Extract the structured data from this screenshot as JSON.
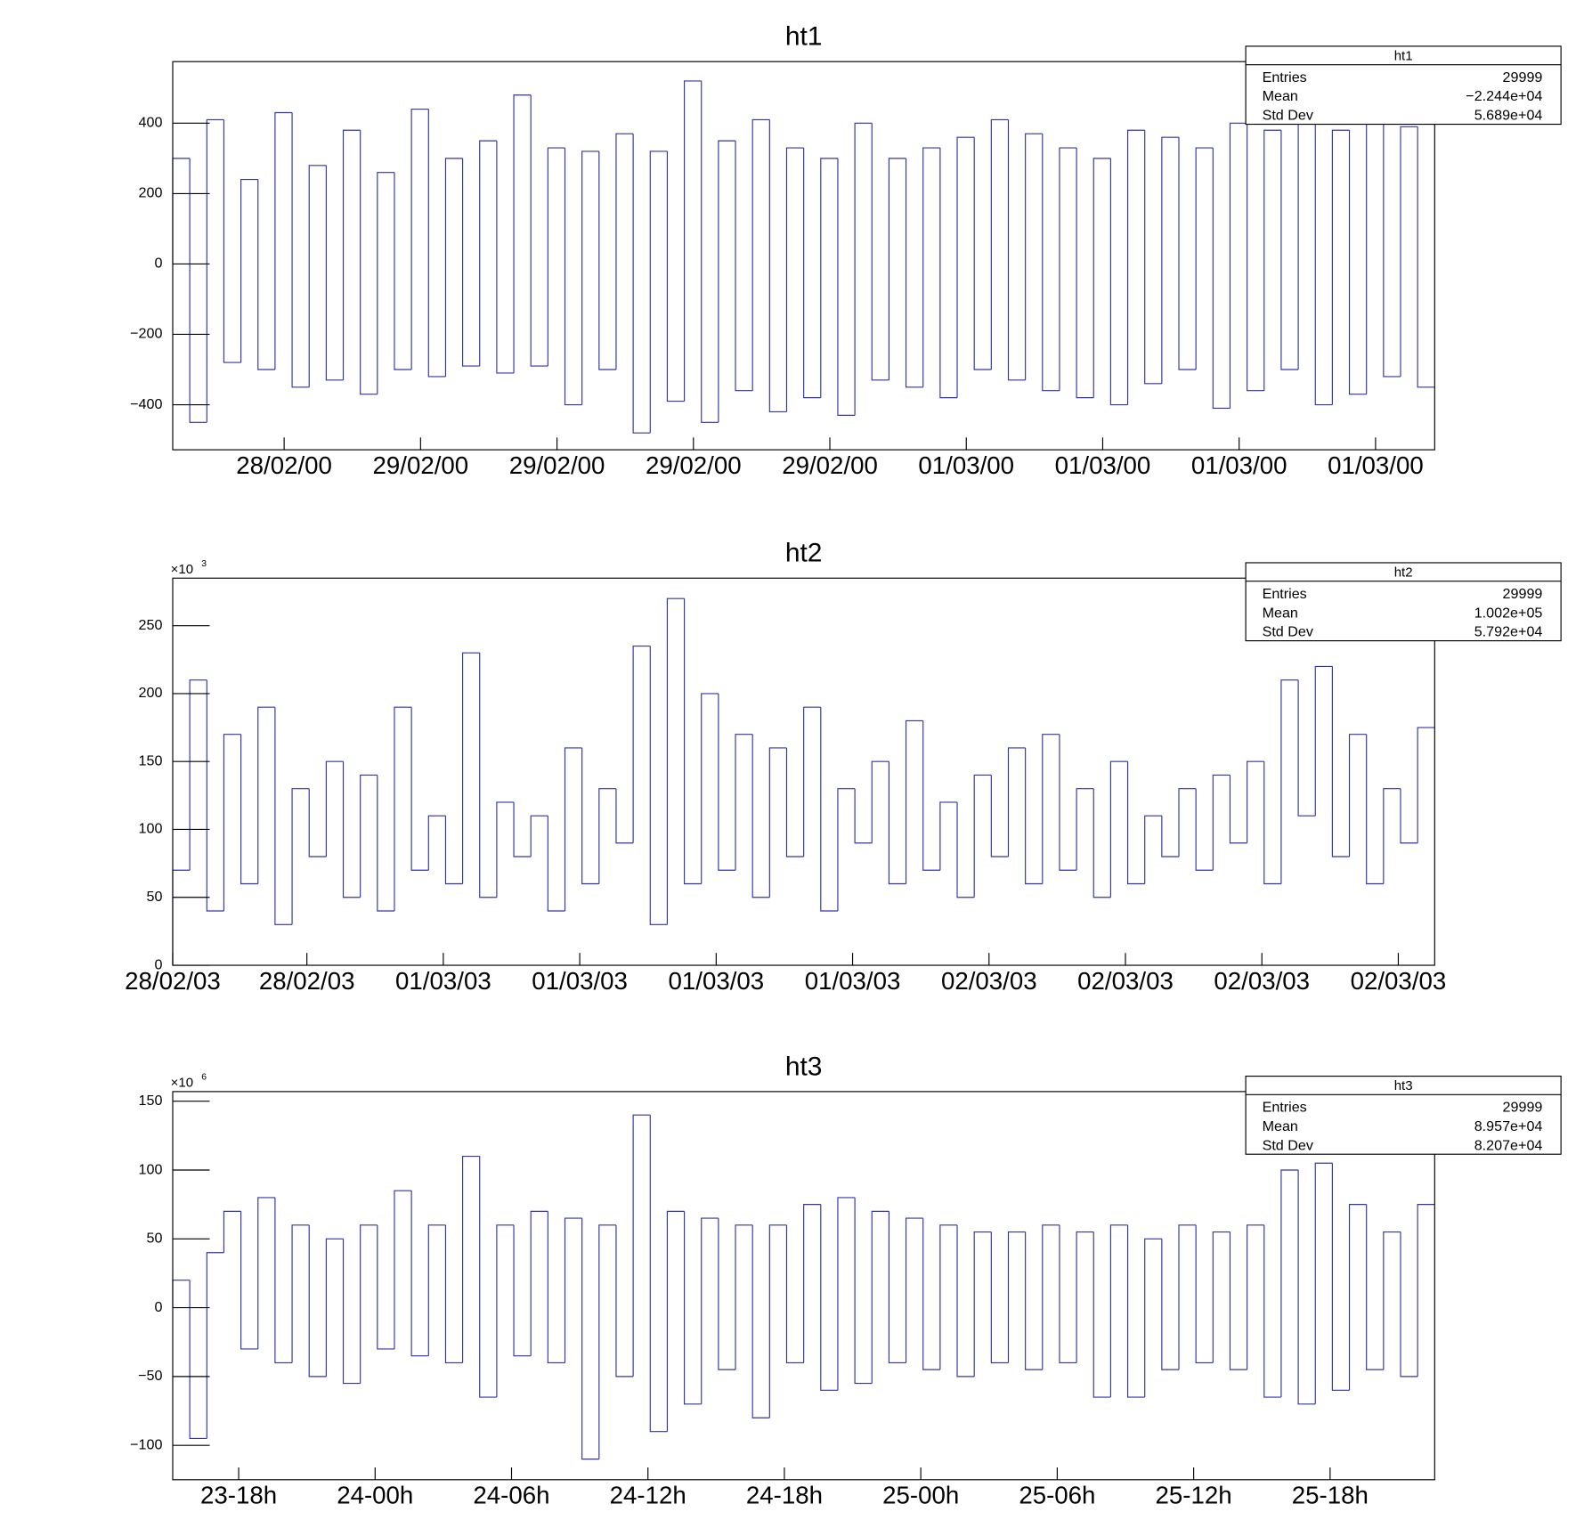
{
  "chart_data": [
    {
      "type": "histogram",
      "title": "ht1",
      "color": "#3333aa",
      "xlim": [
        0,
        55.5
      ],
      "ylim": [
        -528,
        575
      ],
      "xticks": [
        {
          "value": 4.9,
          "label": "28/02/00"
        },
        {
          "value": 10.9,
          "label": "29/02/00"
        },
        {
          "value": 16.9,
          "label": "29/02/00"
        },
        {
          "value": 22.9,
          "label": "29/02/00"
        },
        {
          "value": 28.9,
          "label": "29/02/00"
        },
        {
          "value": 34.9,
          "label": "01/03/00"
        },
        {
          "value": 40.9,
          "label": "01/03/00"
        },
        {
          "value": 46.9,
          "label": "01/03/00"
        },
        {
          "value": 52.9,
          "label": "01/03/00"
        }
      ],
      "yticks": [
        {
          "value": -400,
          "label": "−400"
        },
        {
          "value": -200,
          "label": "−200"
        },
        0,
        200,
        400
      ],
      "bins": [
        0,
        0.75,
        1.5,
        2.25,
        3,
        3.75,
        4.5,
        5.25,
        6,
        6.75,
        7.5,
        8.25,
        9,
        9.75,
        10.5,
        11.25,
        12,
        12.75,
        13.5,
        14.25,
        15,
        15.75,
        16.5,
        17.25,
        18,
        18.75,
        19.5,
        20.25,
        21,
        21.75,
        22.5,
        23.25,
        24,
        24.75,
        25.5,
        26.25,
        27,
        27.75,
        28.5,
        29.25,
        30,
        30.75,
        31.5,
        32.25,
        33,
        33.75,
        34.5,
        35.25,
        36,
        36.75,
        37.5,
        38.25,
        39,
        39.75,
        40.5,
        41.25,
        42,
        42.75,
        43.5,
        44.25,
        45,
        45.75,
        46.5,
        47.25,
        48,
        48.75,
        49.5,
        50.25,
        51,
        51.75,
        52.5,
        53.25,
        54,
        54.75,
        55.5
      ],
      "values": [
        300,
        -450,
        410,
        -280,
        240,
        -300,
        430,
        -350,
        280,
        -330,
        380,
        -370,
        260,
        -300,
        440,
        -320,
        300,
        -290,
        350,
        -310,
        480,
        -290,
        330,
        -400,
        320,
        -300,
        370,
        -480,
        320,
        -390,
        520,
        -450,
        350,
        -360,
        410,
        -420,
        330,
        -380,
        300,
        -430,
        400,
        -330,
        300,
        -350,
        330,
        -380,
        360,
        -300,
        410,
        -330,
        370,
        -360,
        330,
        -380,
        300,
        -400,
        380,
        -340,
        360,
        -300,
        330,
        -410,
        400,
        -360,
        380,
        -300,
        460,
        -400,
        380,
        -370,
        420,
        -320,
        390,
        -350
      ],
      "stats": {
        "title": "ht1",
        "rows": [
          [
            "Entries",
            "29999"
          ],
          [
            "Mean",
            "−2.244e+04"
          ],
          [
            "Std Dev",
            "5.689e+04"
          ]
        ]
      }
    },
    {
      "type": "histogram",
      "title": "ht2",
      "color": "#3333aa",
      "xlim": [
        0,
        55.5
      ],
      "ylim": [
        0,
        285
      ],
      "y_multiplier": {
        "base": "×10",
        "exponent": "3"
      },
      "xticks": [
        {
          "value": 0,
          "label": "28/02/03"
        },
        {
          "value": 5.9,
          "label": "28/02/03"
        },
        {
          "value": 11.9,
          "label": "01/03/03"
        },
        {
          "value": 17.9,
          "label": "01/03/03"
        },
        {
          "value": 23.9,
          "label": "01/03/03"
        },
        {
          "value": 29.9,
          "label": "01/03/03"
        },
        {
          "value": 35.9,
          "label": "02/03/03"
        },
        {
          "value": 41.9,
          "label": "02/03/03"
        },
        {
          "value": 47.9,
          "label": "02/03/03"
        },
        {
          "value": 53.9,
          "label": "02/03/03"
        }
      ],
      "yticks": [
        0,
        50,
        100,
        150,
        200,
        250
      ],
      "bins": [
        0,
        0.75,
        1.5,
        2.25,
        3,
        3.75,
        4.5,
        5.25,
        6,
        6.75,
        7.5,
        8.25,
        9,
        9.75,
        10.5,
        11.25,
        12,
        12.75,
        13.5,
        14.25,
        15,
        15.75,
        16.5,
        17.25,
        18,
        18.75,
        19.5,
        20.25,
        21,
        21.75,
        22.5,
        23.25,
        24,
        24.75,
        25.5,
        26.25,
        27,
        27.75,
        28.5,
        29.25,
        30,
        30.75,
        31.5,
        32.25,
        33,
        33.75,
        34.5,
        35.25,
        36,
        36.75,
        37.5,
        38.25,
        39,
        39.75,
        40.5,
        41.25,
        42,
        42.75,
        43.5,
        44.25,
        45,
        45.75,
        46.5,
        47.25,
        48,
        48.75,
        49.5,
        50.25,
        51,
        51.75,
        52.5,
        53.25,
        54,
        54.75,
        55.5
      ],
      "values": [
        70,
        210,
        40,
        170,
        60,
        190,
        30,
        130,
        80,
        150,
        50,
        140,
        40,
        190,
        70,
        110,
        60,
        230,
        50,
        120,
        80,
        110,
        40,
        160,
        60,
        130,
        90,
        235,
        30,
        270,
        60,
        200,
        70,
        170,
        50,
        160,
        80,
        190,
        40,
        130,
        90,
        150,
        60,
        180,
        70,
        120,
        50,
        140,
        80,
        160,
        60,
        170,
        70,
        130,
        50,
        150,
        60,
        110,
        80,
        130,
        70,
        140,
        90,
        150,
        60,
        210,
        110,
        220,
        80,
        170,
        60,
        130,
        90,
        175
      ],
      "stats": {
        "title": "ht2",
        "rows": [
          [
            "Entries",
            "29999"
          ],
          [
            "Mean",
            "1.002e+05"
          ],
          [
            "Std Dev",
            "5.792e+04"
          ]
        ]
      }
    },
    {
      "type": "histogram",
      "title": "ht3",
      "color": "#3333aa",
      "xlim": [
        0,
        55.5
      ],
      "ylim": [
        -125,
        157
      ],
      "y_multiplier": {
        "base": "×10",
        "exponent": "6"
      },
      "xticks": [
        {
          "value": 2.9,
          "label": "23-18h"
        },
        {
          "value": 8.9,
          "label": "24-00h"
        },
        {
          "value": 14.9,
          "label": "24-06h"
        },
        {
          "value": 20.9,
          "label": "24-12h"
        },
        {
          "value": 26.9,
          "label": "24-18h"
        },
        {
          "value": 32.9,
          "label": "25-00h"
        },
        {
          "value": 38.9,
          "label": "25-06h"
        },
        {
          "value": 44.9,
          "label": "25-12h"
        },
        {
          "value": 50.9,
          "label": "25-18h"
        }
      ],
      "yticks": [
        {
          "value": -100,
          "label": "−100"
        },
        {
          "value": -50,
          "label": "−50"
        },
        0,
        50,
        100,
        150
      ],
      "bins": [
        0,
        0.75,
        1.5,
        2.25,
        3,
        3.75,
        4.5,
        5.25,
        6,
        6.75,
        7.5,
        8.25,
        9,
        9.75,
        10.5,
        11.25,
        12,
        12.75,
        13.5,
        14.25,
        15,
        15.75,
        16.5,
        17.25,
        18,
        18.75,
        19.5,
        20.25,
        21,
        21.75,
        22.5,
        23.25,
        24,
        24.75,
        25.5,
        26.25,
        27,
        27.75,
        28.5,
        29.25,
        30,
        30.75,
        31.5,
        32.25,
        33,
        33.75,
        34.5,
        35.25,
        36,
        36.75,
        37.5,
        38.25,
        39,
        39.75,
        40.5,
        41.25,
        42,
        42.75,
        43.5,
        44.25,
        45,
        45.75,
        46.5,
        47.25,
        48,
        48.75,
        49.5,
        50.25,
        51,
        51.75,
        52.5,
        53.25,
        54,
        54.75,
        55.5
      ],
      "values": [
        20,
        -95,
        40,
        70,
        -30,
        80,
        -40,
        60,
        -50,
        50,
        -55,
        60,
        -30,
        85,
        -35,
        60,
        -40,
        110,
        -65,
        60,
        -35,
        70,
        -40,
        65,
        -110,
        60,
        -50,
        140,
        -90,
        70,
        -70,
        65,
        -45,
        60,
        -80,
        60,
        -40,
        75,
        -60,
        80,
        -55,
        70,
        -40,
        65,
        -45,
        60,
        -50,
        55,
        -40,
        55,
        -45,
        60,
        -40,
        55,
        -65,
        60,
        -65,
        50,
        -45,
        60,
        -40,
        55,
        -45,
        60,
        -65,
        100,
        -70,
        105,
        -60,
        75,
        -45,
        55,
        -50,
        75
      ],
      "stats": {
        "title": "ht3",
        "rows": [
          [
            "Entries",
            "29999"
          ],
          [
            "Mean",
            "8.957e+04"
          ],
          [
            "Std Dev",
            "8.207e+04"
          ]
        ]
      }
    }
  ]
}
